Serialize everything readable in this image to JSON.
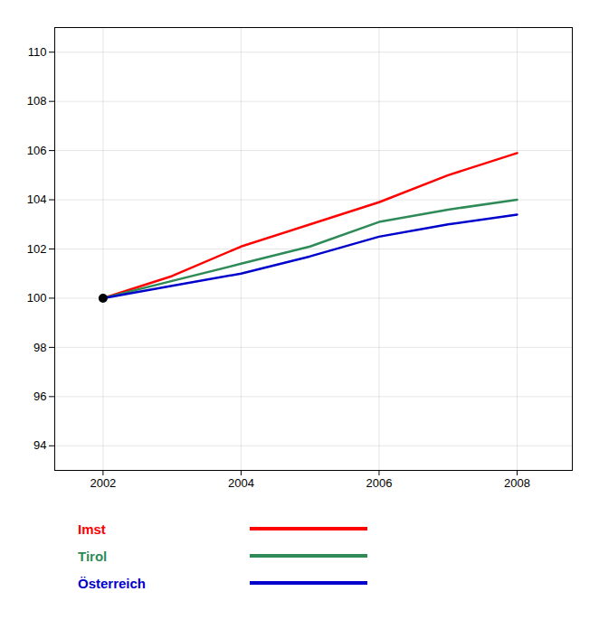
{
  "chart_data": {
    "type": "line",
    "x": [
      2002,
      2003,
      2004,
      2005,
      2006,
      2007,
      2008
    ],
    "series": [
      {
        "name": "Imst",
        "color": "#ff0000",
        "values": [
          100.0,
          100.9,
          102.1,
          103.0,
          103.9,
          105.0,
          105.9
        ]
      },
      {
        "name": "Tirol",
        "color": "#2e8b57",
        "values": [
          100.0,
          100.7,
          101.4,
          102.1,
          103.1,
          103.6,
          104.0
        ]
      },
      {
        "name": "Österreich",
        "color": "#0000cc",
        "values": [
          100.0,
          100.5,
          101.0,
          101.7,
          102.5,
          103.0,
          103.4
        ]
      }
    ],
    "points": [
      {
        "x": 2002,
        "y": 100,
        "color": "#000000"
      }
    ],
    "xlim": [
      2001.3,
      2008.8
    ],
    "xticks": [
      2002,
      2004,
      2006,
      2008
    ],
    "ylim": [
      93.0,
      111.0
    ],
    "yticks": [
      94,
      96,
      98,
      100,
      102,
      104,
      106,
      108,
      110
    ],
    "grid": true,
    "legend": "bottom"
  }
}
